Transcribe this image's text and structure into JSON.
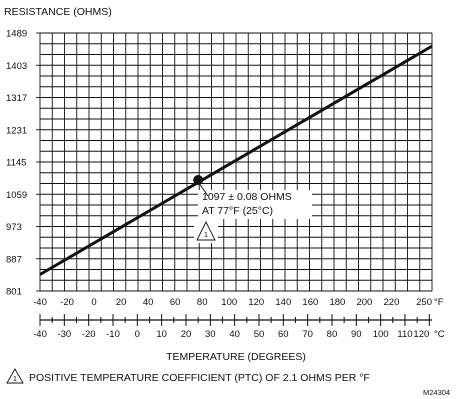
{
  "chart_data": {
    "type": "line",
    "ylabel": "RESISTANCE (OHMS)",
    "xlabel": "TEMPERATURE (DEGREES)",
    "y_ticks": [
      801,
      887,
      973,
      1059,
      1145,
      1231,
      1317,
      1403,
      1489
    ],
    "ylim": [
      801,
      1489
    ],
    "x_f_ticks": [
      -40,
      -20,
      0,
      20,
      40,
      60,
      80,
      100,
      120,
      140,
      160,
      180,
      200,
      220,
      250
    ],
    "x_f_labels": [
      "-40",
      "-20",
      "0",
      "20",
      "40",
      "60",
      "80",
      "100",
      "120",
      "140",
      "160",
      "180",
      "200",
      "220",
      "250"
    ],
    "x_f_unit": "°F",
    "xlim_f": [
      -40,
      250
    ],
    "x_c_ticks": [
      -40,
      -30,
      -20,
      -10,
      0,
      10,
      20,
      30,
      40,
      50,
      60,
      70,
      80,
      90,
      100,
      110,
      120
    ],
    "x_c_labels": [
      "-40",
      "-30",
      "-20",
      "-10",
      "0",
      "10",
      "20",
      "30",
      "40",
      "50",
      "60",
      "70",
      "80",
      "90",
      "100",
      "110",
      "120"
    ],
    "x_c_unit": "°C",
    "grid": true,
    "series": [
      {
        "x": [
          -40,
          250
        ],
        "y": [
          845,
          1454
        ]
      }
    ],
    "point": {
      "x": 77,
      "y": 1097
    },
    "annotation": {
      "line1": "1097 ± 0.08 OHMS",
      "line2": "AT 77°F (25°C)",
      "marker": "1"
    },
    "footnote": {
      "marker": "1",
      "text": "POSITIVE TEMPERATURE COEFFICIENT (PTC) OF 2.1 OHMS PER °F"
    },
    "figure_id": "M24304"
  }
}
